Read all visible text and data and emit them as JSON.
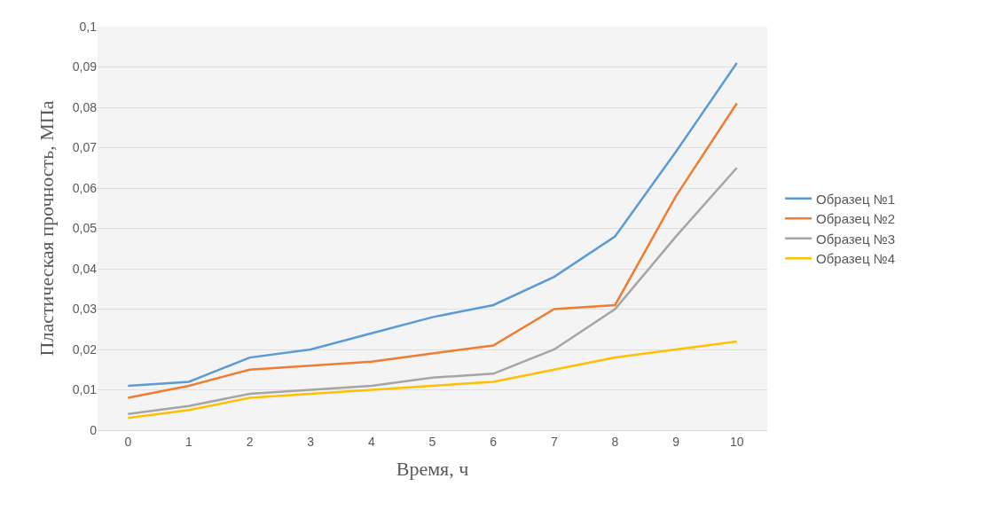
{
  "chart_data": {
    "type": "line",
    "xlabel": "Время, ч",
    "ylabel": "Пластическая прочность, МПа",
    "categories": [
      "0",
      "1",
      "2",
      "3",
      "4",
      "5",
      "6",
      "7",
      "8",
      "9",
      "10"
    ],
    "series": [
      {
        "name": "Образец №1",
        "color": "#5b9bd5",
        "values": [
          0.011,
          0.012,
          0.018,
          0.02,
          0.024,
          0.028,
          0.031,
          0.038,
          0.048,
          0.069,
          0.091
        ]
      },
      {
        "name": "Образец №2",
        "color": "#ed7d31",
        "values": [
          0.008,
          0.011,
          0.015,
          0.016,
          0.017,
          0.019,
          0.021,
          0.03,
          0.031,
          0.058,
          0.081
        ]
      },
      {
        "name": "Образец №3",
        "color": "#a5a5a5",
        "values": [
          0.004,
          0.006,
          0.009,
          0.01,
          0.011,
          0.013,
          0.014,
          0.02,
          0.03,
          0.048,
          0.065
        ]
      },
      {
        "name": "Образец №4",
        "color": "#ffc000",
        "values": [
          0.003,
          0.005,
          0.008,
          0.009,
          0.01,
          0.011,
          0.012,
          0.015,
          0.018,
          0.02,
          0.022
        ]
      }
    ],
    "ylim": [
      0,
      0.1
    ],
    "yticks": [
      0,
      {
        "value": 0.01,
        "label": "0,01"
      },
      {
        "value": 0.02,
        "label": "0,02"
      },
      {
        "value": 0.03,
        "label": "0,03"
      },
      {
        "value": 0.04,
        "label": "0,04"
      },
      {
        "value": 0.05,
        "label": "0,05"
      },
      {
        "value": 0.06,
        "label": "0,06"
      },
      {
        "value": 0.07,
        "label": "0,07"
      },
      {
        "value": 0.08,
        "label": "0,08"
      },
      {
        "value": 0.09,
        "label": "0,09"
      },
      {
        "value": 0.1,
        "label": "0,1"
      }
    ],
    "grid": "y",
    "legend": "right",
    "marker": "none",
    "line_style": "solid"
  }
}
